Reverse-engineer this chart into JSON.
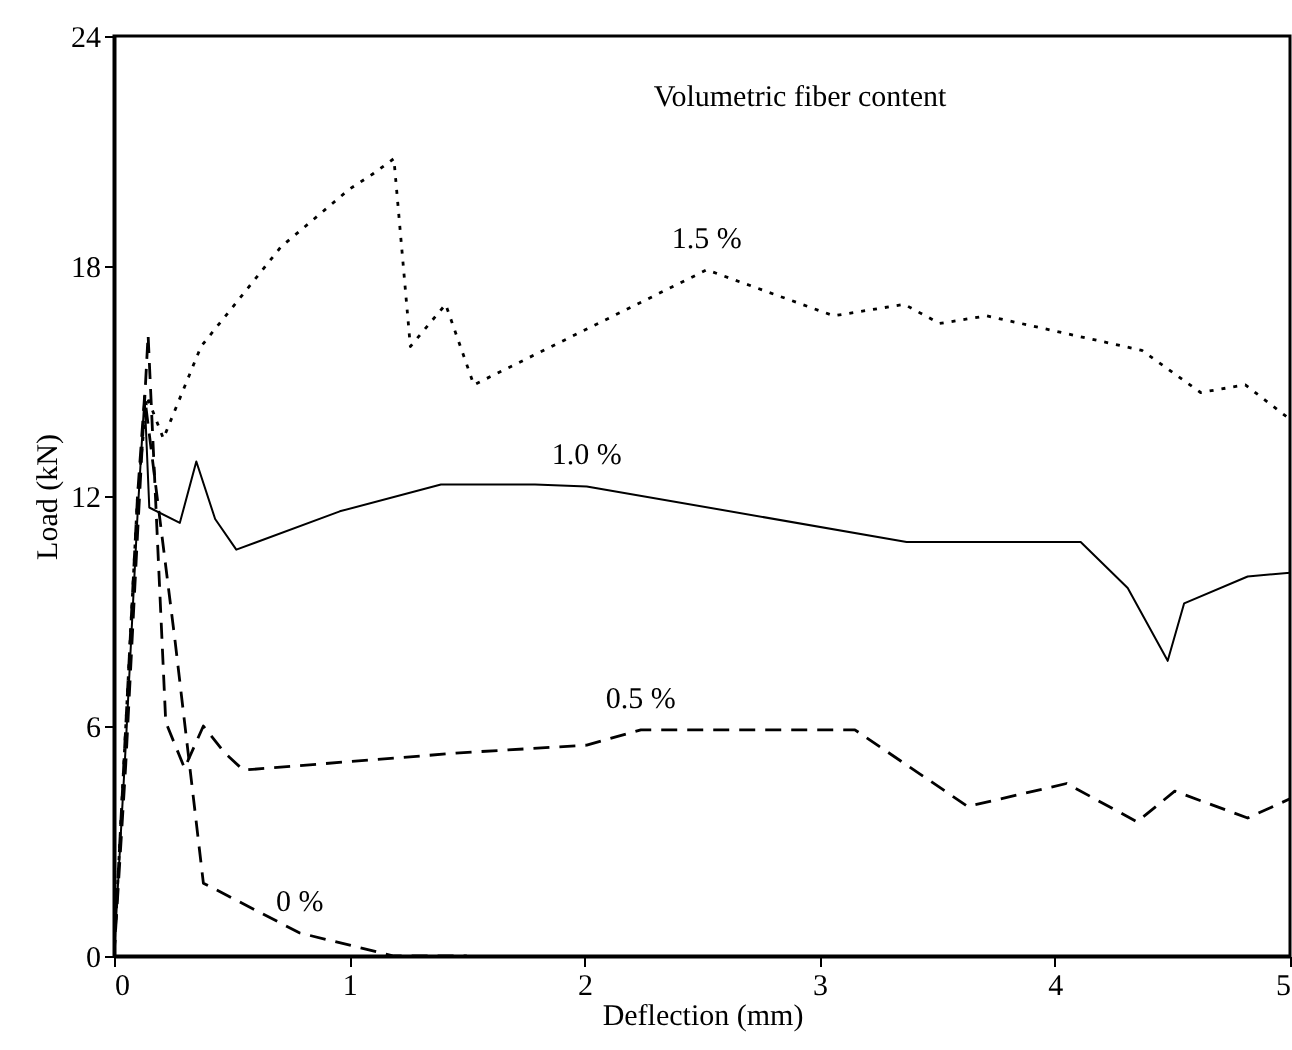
{
  "chart_data": {
    "type": "line",
    "xlabel": "Deflection (mm)",
    "ylabel": "Load (kN)",
    "xlim": [
      0,
      5
    ],
    "xticks": [
      0,
      1,
      2,
      3,
      4,
      5
    ],
    "ylim": [
      0,
      24
    ],
    "yticks": [
      0,
      6,
      12,
      18,
      24
    ],
    "grid": false,
    "marker": "none",
    "series": [
      {
        "name": "1.5 %",
        "color": "#000000",
        "line_style": "dotted",
        "x": [
          0,
          0.05,
          0.1,
          0.14,
          0.21,
          0.37,
          0.71,
          1.0,
          1.1,
          1.19,
          1.26,
          1.41,
          1.53,
          2.52,
          3.06,
          3.36,
          3.51,
          3.71,
          4.37,
          4.62,
          4.81,
          5.0
        ],
        "values": [
          0,
          6,
          12,
          14.6,
          13.5,
          15.9,
          18.5,
          20.0,
          20.4,
          20.8,
          15.9,
          17.0,
          14.9,
          17.9,
          16.7,
          17.0,
          16.5,
          16.7,
          15.8,
          14.7,
          14.9,
          14.0
        ]
      },
      {
        "name": "1.0 %",
        "color": "#000000",
        "line_style": "solid",
        "x": [
          0,
          0.05,
          0.1,
          0.13,
          0.15,
          0.28,
          0.35,
          0.43,
          0.52,
          0.96,
          1.39,
          1.79,
          2.01,
          3.37,
          4.11,
          4.31,
          4.48,
          4.55,
          4.82,
          5.0
        ],
        "values": [
          0,
          5.5,
          11.5,
          14.6,
          11.7,
          11.3,
          12.9,
          11.4,
          10.6,
          11.6,
          12.3,
          12.3,
          12.25,
          10.8,
          10.8,
          9.6,
          7.7,
          9.2,
          9.9,
          10.0
        ]
      },
      {
        "name": "0.5 %",
        "color": "#000000",
        "line_style": "dashed",
        "x": [
          0,
          0.05,
          0.1,
          0.145,
          0.22,
          0.3,
          0.38,
          0.47,
          0.55,
          1.47,
          2.01,
          2.24,
          3.15,
          3.63,
          4.05,
          4.35,
          4.51,
          4.82,
          5.0
        ],
        "values": [
          0,
          5,
          11,
          16.2,
          6.1,
          4.9,
          6.0,
          5.3,
          4.85,
          5.3,
          5.5,
          5.9,
          5.9,
          3.9,
          4.5,
          3.5,
          4.3,
          3.6,
          4.1
        ]
      },
      {
        "name": "0 %",
        "color": "#000000",
        "line_style": "dashed",
        "x": [
          0,
          0.05,
          0.1,
          0.13,
          0.26,
          0.38,
          0.79,
          1.19,
          1.5
        ],
        "values": [
          0,
          6,
          12,
          14.6,
          8.2,
          1.9,
          0.6,
          0.0,
          0.0
        ]
      }
    ],
    "annotations": [
      "Volumetric fiber content"
    ]
  }
}
